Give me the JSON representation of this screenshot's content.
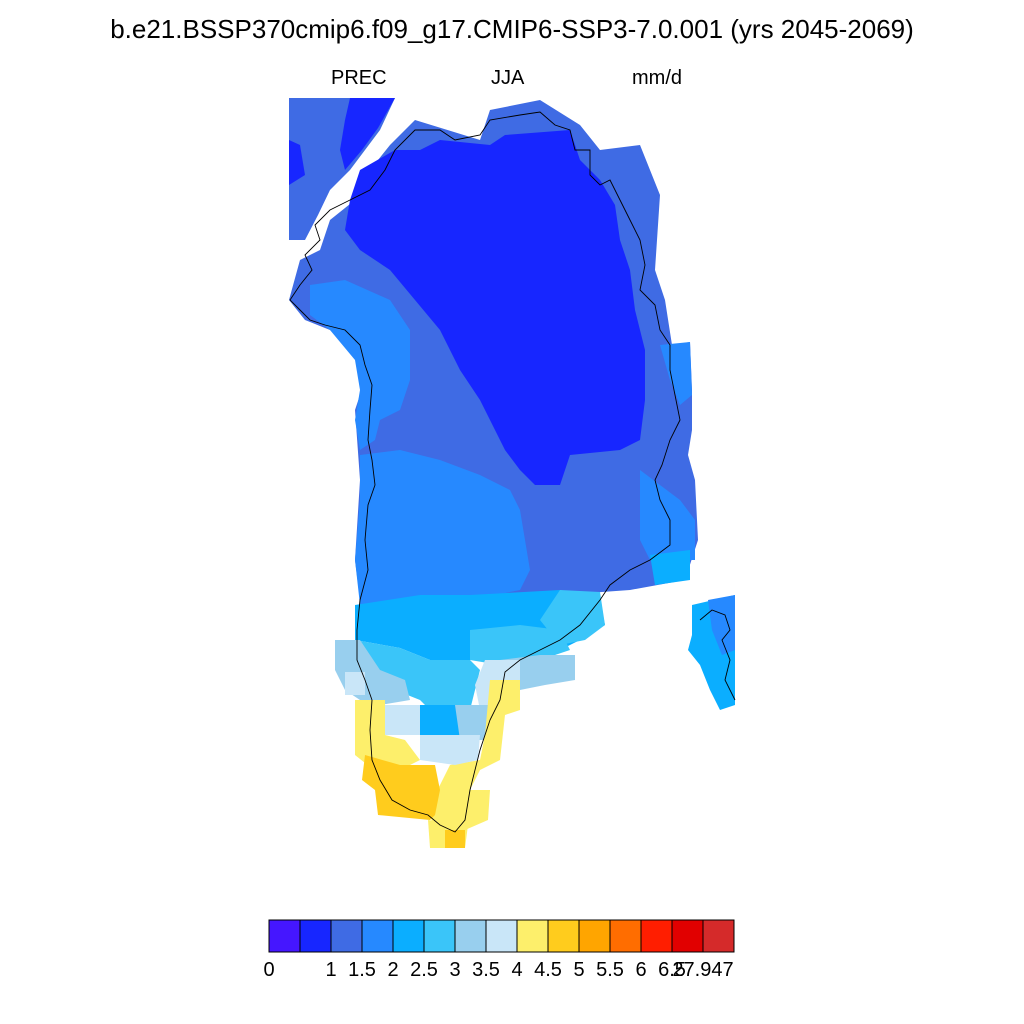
{
  "title": "b.e21.BSSP370cmip6.f09_g17.CMIP6-SSP3-7.0.001 (yrs 2045-2069)",
  "subtitles": {
    "left": "PREC",
    "center": "JJA",
    "right": "mm/d"
  },
  "colorbar": {
    "colors": [
      "#4516ff",
      "#1726ff",
      "#3f6be4",
      "#2689ff",
      "#0baeff",
      "#3ac5f9",
      "#98cfee",
      "#c9e6f8",
      "#fdef6b",
      "#ffcc1d",
      "#ffa500",
      "#ff6d00",
      "#ff1e00",
      "#e10000",
      "#d52a2a"
    ],
    "tick_labels": [
      "0",
      "1",
      "1.5",
      "2",
      "2.5",
      "3",
      "3.5",
      "4",
      "4.5",
      "5",
      "5.5",
      "6",
      "6.5",
      "27.947"
    ]
  }
}
